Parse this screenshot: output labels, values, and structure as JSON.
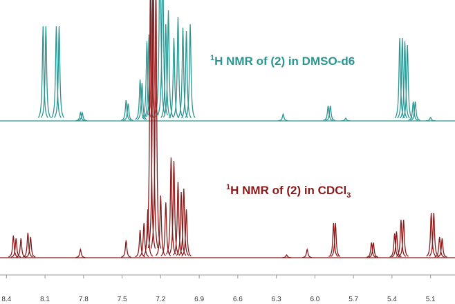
{
  "chart_data": {
    "type": "spectrum",
    "xlim": [
      8.45,
      4.91
    ],
    "xticks": [
      8.4,
      8.1,
      7.8,
      7.5,
      7.2,
      6.9,
      6.6,
      6.3,
      {
        "value": 6,
        "label": "6.0"
      },
      5.7,
      5.4,
      5.1
    ],
    "series": [
      {
        "label": {
          "sup": "1",
          "text": "H NMR of (2) in DMSO-d6"
        },
        "color": "#2a9591",
        "x": [
          8.115,
          8.093,
          8.012,
          7.99,
          7.824,
          7.81,
          7.469,
          7.453,
          7.36,
          7.345,
          7.307,
          7.291,
          7.275,
          7.259,
          7.205,
          7.184,
          7.16,
          7.14,
          7.097,
          7.065,
          7.027,
          7.0,
          6.97,
          6.247,
          5.897,
          5.88,
          5.76,
          5.34,
          5.32,
          5.3,
          5.28,
          5.235,
          5.219,
          5.1
        ],
        "values": [
          137,
          137,
          137,
          137,
          12,
          12,
          30,
          25,
          60,
          55,
          115,
          125,
          175,
          250,
          300,
          250,
          140,
          160,
          120,
          150,
          135,
          130,
          140,
          10,
          22,
          22,
          4,
          120,
          120,
          115,
          110,
          28,
          28,
          5
        ]
      },
      {
        "label": {
          "sup": "1",
          "text": "H NMR of (2) in CDCl",
          "sub": "3"
        },
        "color": "#8b1a1a",
        "x": [
          8.346,
          8.325,
          8.287,
          8.233,
          8.212,
          7.824,
          7.469,
          7.36,
          7.33,
          7.3,
          7.28,
          7.259,
          7.237,
          7.2,
          7.16,
          7.119,
          7.097,
          7.065,
          7.04,
          7.02,
          7.0,
          6.22,
          6.06,
          5.855,
          5.84,
          5.56,
          5.545,
          5.38,
          5.365,
          5.33,
          5.31,
          5.095,
          5.075,
          5.03,
          5.01
        ],
        "values": [
          32,
          28,
          28,
          36,
          30,
          12,
          25,
          40,
          50,
          70,
          400,
          420,
          400,
          90,
          80,
          145,
          140,
          110,
          95,
          100,
          70,
          4,
          12,
          50,
          50,
          22,
          22,
          35,
          38,
          55,
          55,
          65,
          65,
          30,
          28
        ]
      }
    ]
  }
}
